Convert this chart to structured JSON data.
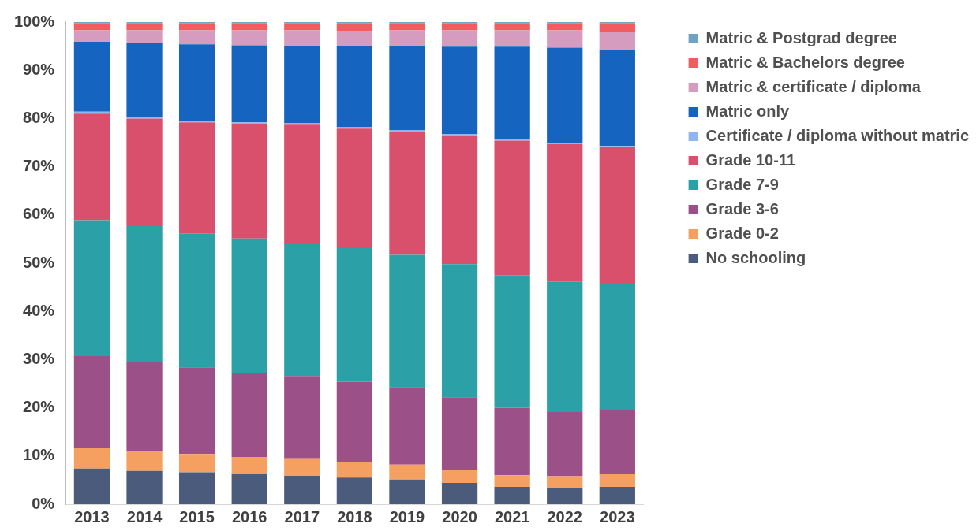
{
  "chart_data": {
    "type": "bar",
    "stacked": true,
    "legend": "right",
    "grid": false,
    "categories": [
      "2013",
      "2014",
      "2015",
      "2016",
      "2017",
      "2018",
      "2019",
      "2020",
      "2021",
      "2022",
      "2023"
    ],
    "ylim": [
      0,
      100
    ],
    "yticks": [
      {
        "value": 0,
        "label": "0%"
      },
      {
        "value": 10,
        "label": "10%"
      },
      {
        "value": 20,
        "label": "20%"
      },
      {
        "value": 30,
        "label": "30%"
      },
      {
        "value": 40,
        "label": "40%"
      },
      {
        "value": 50,
        "label": "50%"
      },
      {
        "value": 60,
        "label": "60%"
      },
      {
        "value": 70,
        "label": "70%"
      },
      {
        "value": 80,
        "label": "80%"
      },
      {
        "value": 90,
        "label": "90%"
      },
      {
        "value": 100,
        "label": "100%"
      }
    ],
    "series": [
      {
        "name": "No schooling",
        "color": "#4a5b7c",
        "values": [
          7.4,
          6.9,
          6.6,
          6.2,
          5.9,
          5.5,
          5.1,
          4.4,
          3.6,
          3.4,
          3.6
        ]
      },
      {
        "name": "Grade 0-2",
        "color": "#f5a060",
        "values": [
          4.2,
          4.2,
          3.8,
          3.6,
          3.6,
          3.3,
          3.1,
          2.7,
          2.4,
          2.4,
          2.6
        ]
      },
      {
        "name": "Grade 3-6",
        "color": "#9b5087",
        "values": [
          19.1,
          18.4,
          18.0,
          17.5,
          17.1,
          16.6,
          16.1,
          15.1,
          14.0,
          13.3,
          13.3
        ]
      },
      {
        "name": "Grade 7-9",
        "color": "#2ba0a6",
        "values": [
          28.2,
          28.2,
          27.7,
          27.8,
          27.5,
          27.7,
          27.4,
          27.6,
          27.5,
          27.0,
          26.2
        ]
      },
      {
        "name": "Grade 10-11",
        "color": "#d9506d",
        "values": [
          22.1,
          22.3,
          23.1,
          23.8,
          24.6,
          24.8,
          25.6,
          26.7,
          27.9,
          28.6,
          28.3
        ]
      },
      {
        "name": "Certificate / diploma without matric",
        "color": "#8fb4ee",
        "values": [
          0.4,
          0.3,
          0.3,
          0.3,
          0.3,
          0.3,
          0.3,
          0.3,
          0.3,
          0.3,
          0.3
        ]
      },
      {
        "name": "Matric only",
        "color": "#1565c0",
        "values": [
          14.5,
          15.3,
          15.9,
          16.0,
          16.0,
          16.9,
          17.4,
          18.1,
          19.2,
          19.7,
          20.0
        ]
      },
      {
        "name": "Matric & certificate / diploma",
        "color": "#d69cc0",
        "values": [
          2.4,
          2.7,
          2.9,
          3.1,
          3.3,
          3.1,
          3.3,
          3.4,
          3.4,
          3.6,
          3.7
        ]
      },
      {
        "name": "Matric & Bachelors degree",
        "color": "#f05c5f",
        "values": [
          1.4,
          1.4,
          1.4,
          1.4,
          1.4,
          1.5,
          1.4,
          1.4,
          1.4,
          1.4,
          1.7
        ]
      },
      {
        "name": "Matric & Postgrad degree",
        "color": "#6fa3bf",
        "values": [
          0.3,
          0.3,
          0.3,
          0.3,
          0.3,
          0.3,
          0.3,
          0.3,
          0.3,
          0.3,
          0.3
        ]
      }
    ]
  }
}
